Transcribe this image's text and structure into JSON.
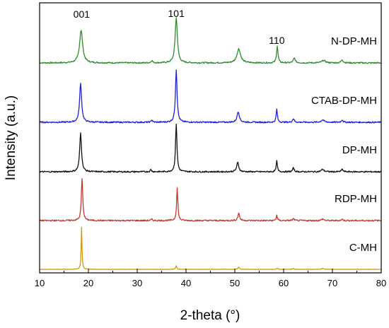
{
  "chart_data": {
    "type": "line",
    "title": "",
    "xlabel": "2-theta (°)",
    "ylabel": "Intensity (a.u.)",
    "xlim": [
      10,
      80
    ],
    "x_ticks": [
      10,
      20,
      30,
      40,
      50,
      60,
      70,
      80
    ],
    "y_ticks_shown": false,
    "grid": false,
    "legend": "none (series labeled inline, right side)",
    "peak_labels": [
      {
        "text": "001",
        "x": 18.6
      },
      {
        "text": "101",
        "x": 38.0
      },
      {
        "text": "110",
        "x": 58.6
      }
    ],
    "series": [
      {
        "name": "N-DP-MH",
        "color": "#2e8b2e",
        "baseline": 4.0,
        "peaks": [
          [
            18.5,
            1.05,
            0.75
          ],
          [
            33.0,
            0.08,
            0.35
          ],
          [
            38.0,
            1.45,
            0.55
          ],
          [
            50.8,
            0.45,
            0.9
          ],
          [
            58.7,
            0.55,
            0.35
          ],
          [
            62.2,
            0.15,
            0.5
          ],
          [
            68.2,
            0.08,
            0.9
          ],
          [
            72.0,
            0.1,
            0.5
          ]
        ]
      },
      {
        "name": "CTAB-DP-MH",
        "color": "#1f1fd6",
        "baseline": 3.0,
        "peaks": [
          [
            18.4,
            1.25,
            0.5
          ],
          [
            33.0,
            0.08,
            0.3
          ],
          [
            38.0,
            1.7,
            0.4
          ],
          [
            50.7,
            0.35,
            0.55
          ],
          [
            58.6,
            0.42,
            0.3
          ],
          [
            62.0,
            0.12,
            0.4
          ],
          [
            68.0,
            0.08,
            0.7
          ],
          [
            72.0,
            0.08,
            0.4
          ]
        ]
      },
      {
        "name": "DP-MH",
        "color": "#111111",
        "baseline": 2.0,
        "peaks": [
          [
            18.4,
            1.25,
            0.45
          ],
          [
            32.8,
            0.07,
            0.3
          ],
          [
            38.0,
            1.55,
            0.35
          ],
          [
            50.6,
            0.3,
            0.5
          ],
          [
            58.6,
            0.35,
            0.28
          ],
          [
            62.0,
            0.12,
            0.38
          ],
          [
            68.0,
            0.08,
            0.6
          ],
          [
            72.0,
            0.08,
            0.4
          ]
        ]
      },
      {
        "name": "RDP-MH",
        "color": "#c0392b",
        "baseline": 1.0,
        "peaks": [
          [
            18.7,
            1.35,
            0.35
          ],
          [
            33.0,
            0.04,
            0.3
          ],
          [
            38.2,
            1.05,
            0.3
          ],
          [
            50.8,
            0.25,
            0.4
          ],
          [
            58.6,
            0.18,
            0.25
          ],
          [
            62.0,
            0.06,
            0.35
          ],
          [
            68.0,
            0.05,
            0.5
          ],
          [
            72.0,
            0.04,
            0.35
          ]
        ]
      },
      {
        "name": "C-MH",
        "color": "#d4960f",
        "baseline": 0.0,
        "peaks": [
          [
            18.6,
            1.35,
            0.2
          ],
          [
            38.0,
            0.12,
            0.25
          ],
          [
            50.8,
            0.08,
            0.3
          ],
          [
            58.7,
            0.04,
            0.25
          ],
          [
            62.0,
            0.03,
            0.3
          ],
          [
            68.0,
            0.03,
            0.4
          ]
        ]
      }
    ]
  }
}
